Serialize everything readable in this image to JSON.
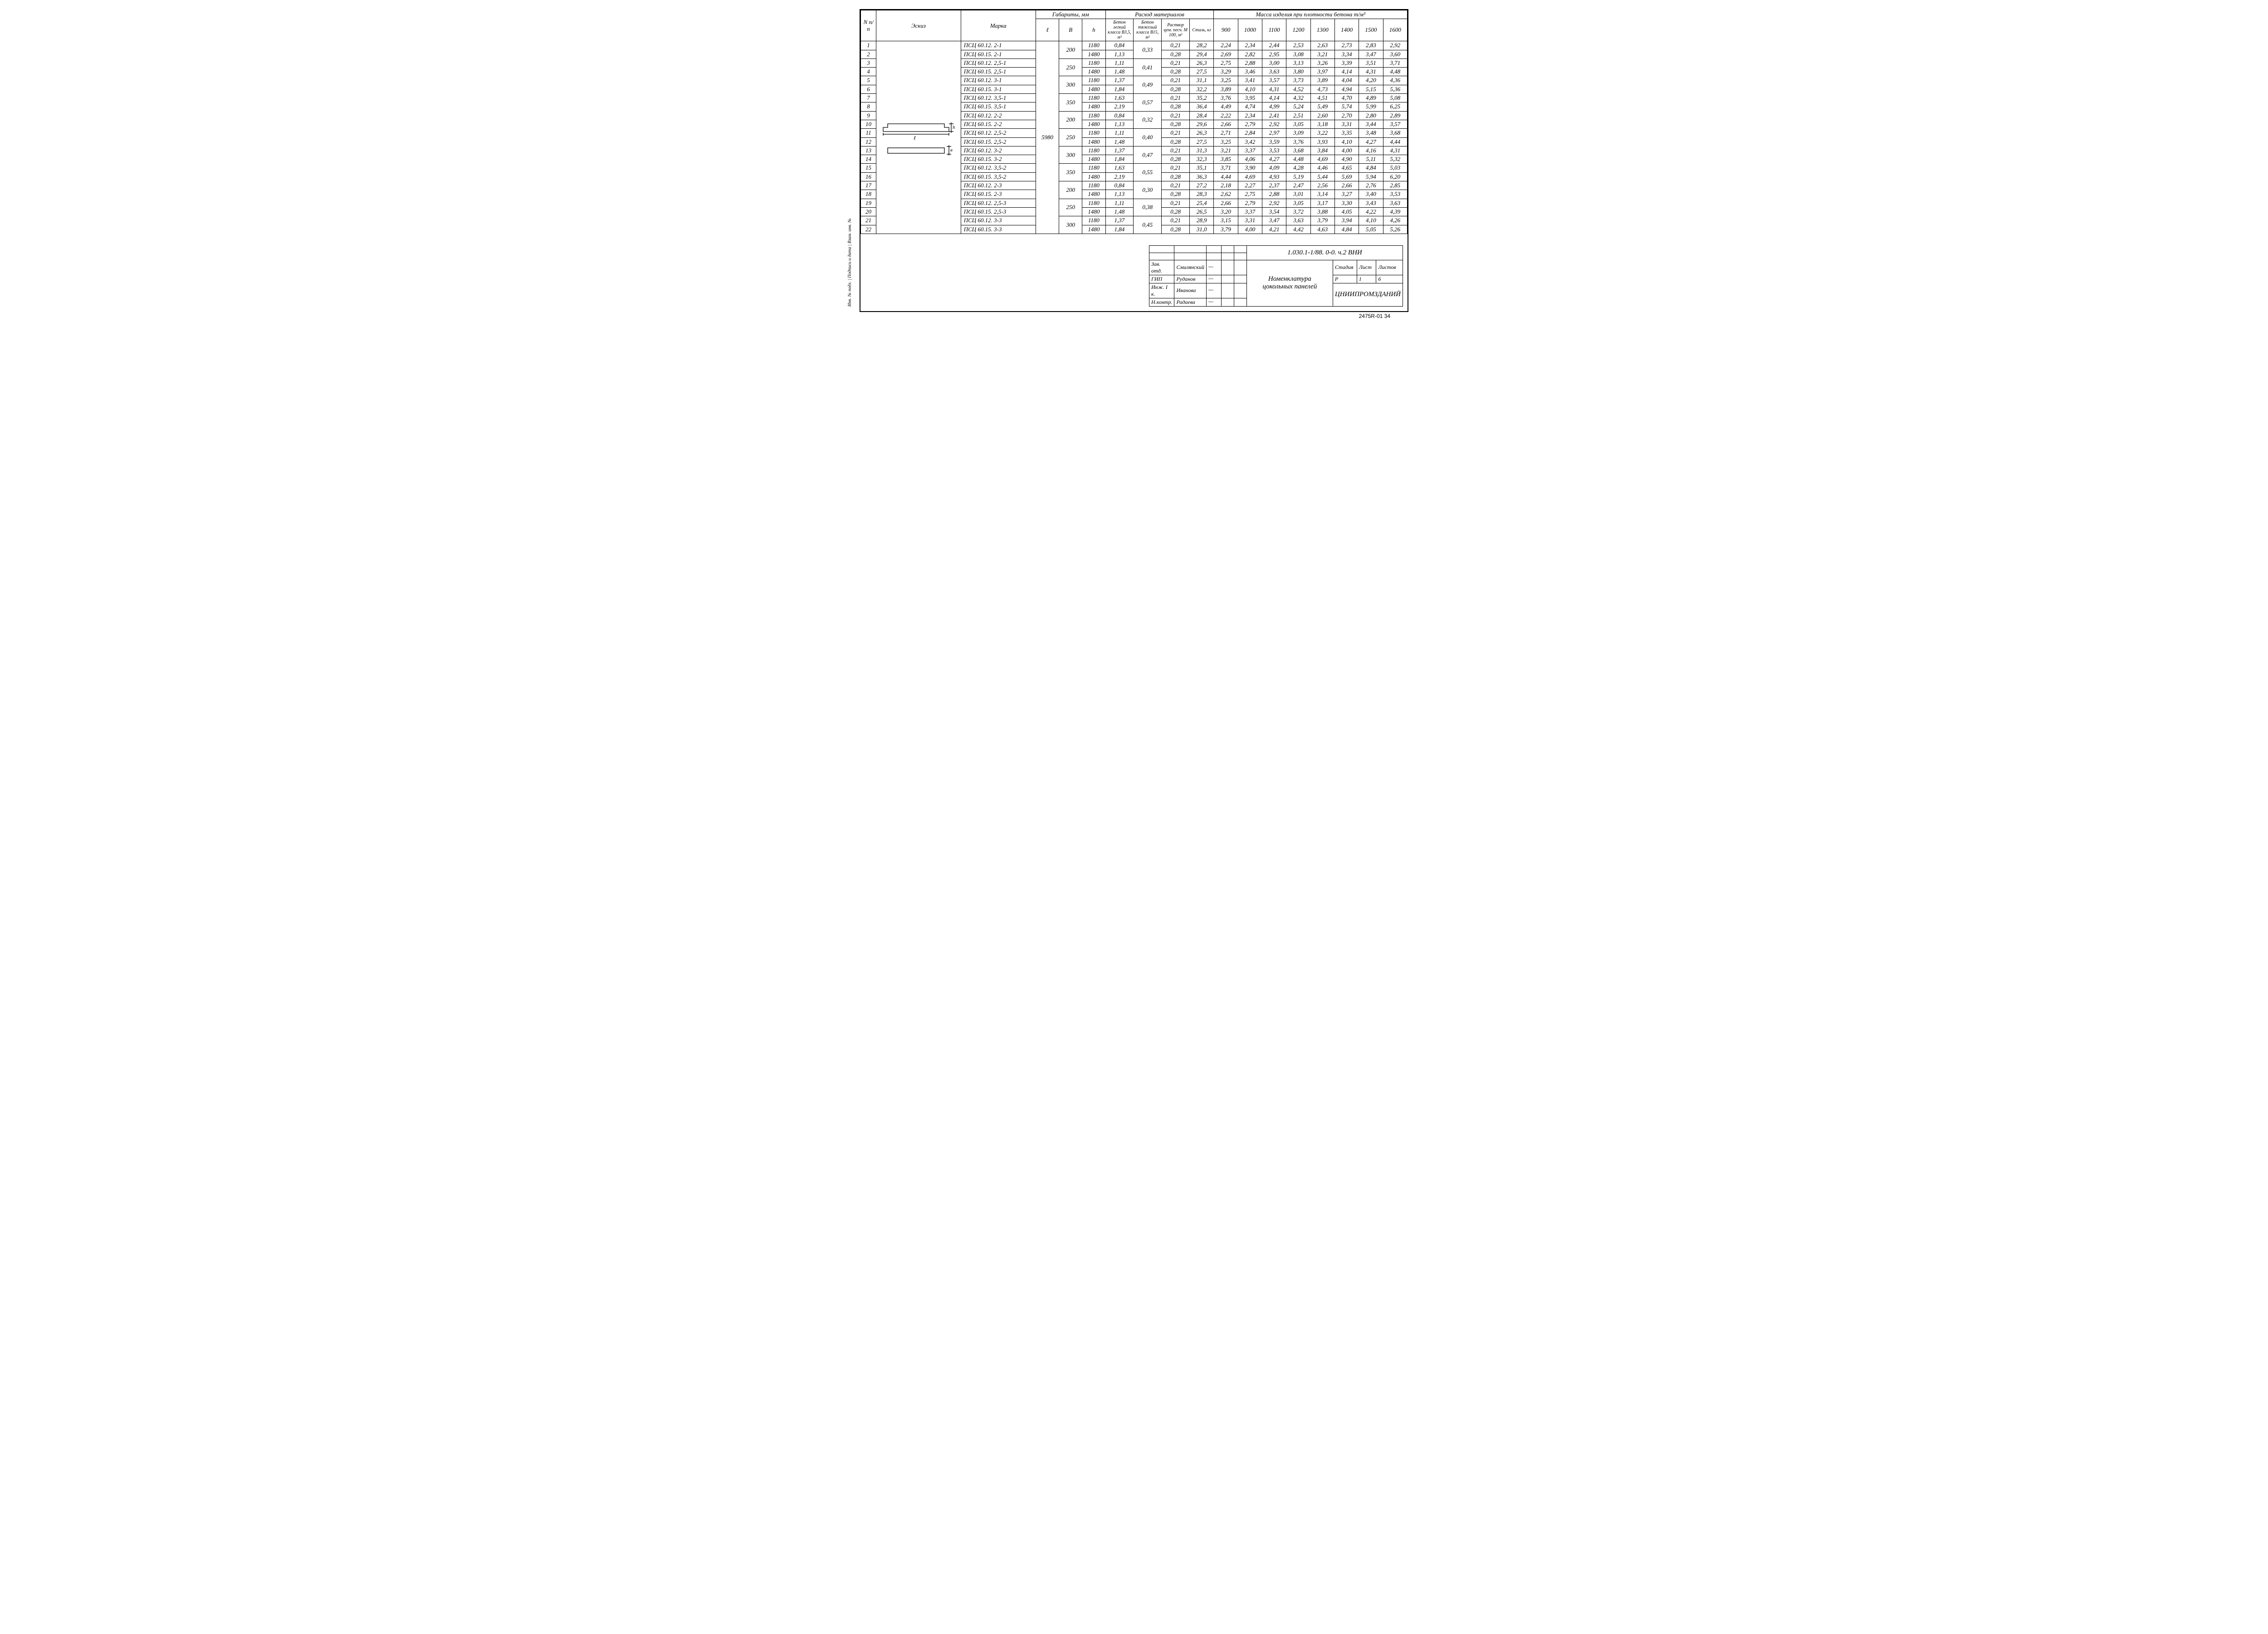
{
  "columns": {
    "n": "N п/п",
    "sketch": "Эскиз",
    "mark": "Марка",
    "dims_group": "Габариты, мм",
    "l": "ℓ",
    "b": "B",
    "h": "h",
    "consumption_group": "Расход материалов",
    "concrete_light": "Бетон легкий класса В3,5, м³",
    "concrete_heavy": "Бетон тяжелый класса В15, м³",
    "mortar": "Раствор цем. песч. М 100, м³",
    "steel": "Сталь, кг",
    "mass_group": "Масса изделия при плотности бетона т/м³",
    "dens": [
      "900",
      "1000",
      "1100",
      "1200",
      "1300",
      "1400",
      "1500",
      "1600"
    ]
  },
  "l_value": "5980",
  "groups": [
    {
      "b": "200",
      "heavy": "0,33",
      "rows": [
        {
          "n": "1",
          "mark": "ПСЦ 60.12. 2-1",
          "h": "1180",
          "light": "0,84",
          "mortar": "0,21",
          "steel": "28,2",
          "m": [
            "2,24",
            "2,34",
            "2,44",
            "2,53",
            "2,63",
            "2,73",
            "2,83",
            "2,92"
          ]
        },
        {
          "n": "2",
          "mark": "ПСЦ 60.15. 2-1",
          "h": "1480",
          "light": "1,13",
          "mortar": "0,28",
          "steel": "29,4",
          "m": [
            "2,69",
            "2,82",
            "2,95",
            "3,08",
            "3,21",
            "3,34",
            "3,47",
            "3,60"
          ]
        }
      ]
    },
    {
      "b": "250",
      "heavy": "0,41",
      "rows": [
        {
          "n": "3",
          "mark": "ПСЦ 60.12. 2,5-1",
          "h": "1180",
          "light": "1,11",
          "mortar": "0,21",
          "steel": "26,3",
          "m": [
            "2,75",
            "2,88",
            "3,00",
            "3,13",
            "3,26",
            "3,39",
            "3,51",
            "3,71"
          ]
        },
        {
          "n": "4",
          "mark": "ПСЦ 60.15. 2,5-1",
          "h": "1480",
          "light": "1,48",
          "mortar": "0,28",
          "steel": "27,5",
          "m": [
            "3,29",
            "3,46",
            "3,63",
            "3,80",
            "3,97",
            "4,14",
            "4,31",
            "4,48"
          ]
        }
      ]
    },
    {
      "b": "300",
      "heavy": "0,49",
      "rows": [
        {
          "n": "5",
          "mark": "ПСЦ 60.12. 3-1",
          "h": "1180",
          "light": "1,37",
          "mortar": "0,21",
          "steel": "31,1",
          "m": [
            "3,25",
            "3,41",
            "3,57",
            "3,73",
            "3,89",
            "4,04",
            "4,20",
            "4,36"
          ]
        },
        {
          "n": "6",
          "mark": "ПСЦ 60.15. 3-1",
          "h": "1480",
          "light": "1,84",
          "mortar": "0,28",
          "steel": "32,2",
          "m": [
            "3,89",
            "4,10",
            "4,31",
            "4,52",
            "4,73",
            "4,94",
            "5,15",
            "5,36"
          ]
        }
      ]
    },
    {
      "b": "350",
      "heavy": "0,57",
      "rows": [
        {
          "n": "7",
          "mark": "ПСЦ 60.12. 3,5-1",
          "h": "1180",
          "light": "1,63",
          "mortar": "0,21",
          "steel": "35,2",
          "m": [
            "3,76",
            "3,95",
            "4,14",
            "4,32",
            "4,51",
            "4,70",
            "4,89",
            "5,08"
          ]
        },
        {
          "n": "8",
          "mark": "ПСЦ 60.15. 3,5-1",
          "h": "1480",
          "light": "2,19",
          "mortar": "0,28",
          "steel": "36,4",
          "m": [
            "4,49",
            "4,74",
            "4,99",
            "5,24",
            "5,49",
            "5,74",
            "5,99",
            "6,25"
          ]
        }
      ]
    },
    {
      "b": "200",
      "heavy": "0,32",
      "rows": [
        {
          "n": "9",
          "mark": "ПСЦ 60.12. 2-2",
          "h": "1180",
          "light": "0,84",
          "mortar": "0,21",
          "steel": "28,4",
          "m": [
            "2,22",
            "2,34",
            "2,41",
            "2,51",
            "2,60",
            "2,70",
            "2,80",
            "2,89"
          ]
        },
        {
          "n": "10",
          "mark": "ПСЦ 60.15. 2-2",
          "h": "1480",
          "light": "1,13",
          "mortar": "0,28",
          "steel": "29,6",
          "m": [
            "2,66",
            "2,79",
            "2,92",
            "3,05",
            "3,18",
            "3,31",
            "3,44",
            "3,57"
          ]
        }
      ]
    },
    {
      "b": "250",
      "heavy": "0,40",
      "rows": [
        {
          "n": "11",
          "mark": "ПСЦ 60.12. 2,5-2",
          "h": "1180",
          "light": "1,11",
          "mortar": "0,21",
          "steel": "26,3",
          "m": [
            "2,71",
            "2,84",
            "2,97",
            "3,09",
            "3,22",
            "3,35",
            "3,48",
            "3,68"
          ]
        },
        {
          "n": "12",
          "mark": "ПСЦ 60.15. 2,5-2",
          "h": "1480",
          "light": "1,48",
          "mortar": "0,28",
          "steel": "27,5",
          "m": [
            "3,25",
            "3,42",
            "3,59",
            "3,76",
            "3,93",
            "4,10",
            "4,27",
            "4,44"
          ]
        }
      ]
    },
    {
      "b": "300",
      "heavy": "0,47",
      "rows": [
        {
          "n": "13",
          "mark": "ПСЦ 60.12. 3-2",
          "h": "1180",
          "light": "1,37",
          "mortar": "0,21",
          "steel": "31,3",
          "m": [
            "3,21",
            "3,37",
            "3,53",
            "3,68",
            "3,84",
            "4,00",
            "4,16",
            "4,31"
          ]
        },
        {
          "n": "14",
          "mark": "ПСЦ 60.15. 3-2",
          "h": "1480",
          "light": "1,84",
          "mortar": "0,28",
          "steel": "32,3",
          "m": [
            "3,85",
            "4,06",
            "4,27",
            "4,48",
            "4,69",
            "4,90",
            "5,11",
            "5,32"
          ]
        }
      ]
    },
    {
      "b": "350",
      "heavy": "0,55",
      "rows": [
        {
          "n": "15",
          "mark": "ПСЦ 60.12. 3,5-2",
          "h": "1180",
          "light": "1,63",
          "mortar": "0,21",
          "steel": "35,1",
          "m": [
            "3,71",
            "3,90",
            "4,09",
            "4,28",
            "4,46",
            "4,65",
            "4,84",
            "5,03"
          ]
        },
        {
          "n": "16",
          "mark": "ПСЦ 60.15. 3,5-2",
          "h": "1480",
          "light": "2,19",
          "mortar": "0,28",
          "steel": "36,3",
          "m": [
            "4,44",
            "4,69",
            "4,93",
            "5,19",
            "5,44",
            "5,69",
            "5,94",
            "6,20"
          ]
        }
      ]
    },
    {
      "b": "200",
      "heavy": "0,30",
      "rows": [
        {
          "n": "17",
          "mark": "ПСЦ 60.12. 2-3",
          "h": "1180",
          "light": "0,84",
          "mortar": "0,21",
          "steel": "27,2",
          "m": [
            "2,18",
            "2,27",
            "2,37",
            "2,47",
            "2,56",
            "2,66",
            "2,76",
            "2,85"
          ]
        },
        {
          "n": "18",
          "mark": "ПСЦ 60.15. 2-3",
          "h": "1480",
          "light": "1,13",
          "mortar": "0,28",
          "steel": "28,3",
          "m": [
            "2,62",
            "2,75",
            "2,88",
            "3,01",
            "3,14",
            "3,27",
            "3,40",
            "3,53"
          ]
        }
      ]
    },
    {
      "b": "250",
      "heavy": "0,38",
      "rows": [
        {
          "n": "19",
          "mark": "ПСЦ 60.12. 2,5-3",
          "h": "1180",
          "light": "1,11",
          "mortar": "0,21",
          "steel": "25,4",
          "m": [
            "2,66",
            "2,79",
            "2,92",
            "3,05",
            "3,17",
            "3,30",
            "3,43",
            "3,63"
          ]
        },
        {
          "n": "20",
          "mark": "ПСЦ 60.15. 2,5-3",
          "h": "1480",
          "light": "1,48",
          "mortar": "0,28",
          "steel": "26,5",
          "m": [
            "3,20",
            "3,37",
            "3,54",
            "3,72",
            "3,88",
            "4,05",
            "4,22",
            "4,39"
          ]
        }
      ]
    },
    {
      "b": "300",
      "heavy": "0,45",
      "rows": [
        {
          "n": "21",
          "mark": "ПСЦ 60.12. 3-3",
          "h": "1180",
          "light": "1,37",
          "mortar": "0,21",
          "steel": "28,9",
          "m": [
            "3,15",
            "3,31",
            "3,47",
            "3,63",
            "3,79",
            "3,94",
            "4,10",
            "4,26"
          ]
        },
        {
          "n": "22",
          "mark": "ПСЦ 60.15. 3-3",
          "h": "1480",
          "light": "1,84",
          "mortar": "0,28",
          "steel": "31,0",
          "m": [
            "3,79",
            "4,00",
            "4,21",
            "4,42",
            "4,63",
            "4,84",
            "5,05",
            "5,26"
          ]
        }
      ]
    }
  ],
  "title_block": {
    "code": "1.030.1-1/88. 0-0. ч.2 ВНИ",
    "title1": "Номенклатура",
    "title2": "цокольных панелей",
    "roles": [
      {
        "role": "Зав. отд.",
        "name": "Смилянский"
      },
      {
        "role": "ГИП",
        "name": "Руданов"
      },
      {
        "role": "Инж. I к.",
        "name": "Иванова"
      },
      {
        "role": "Н.контр.",
        "name": "Радаева"
      }
    ],
    "stage_h": "Стадия",
    "sheet_h": "Лист",
    "sheets_h": "Листов",
    "stage": "Р",
    "sheet": "1",
    "sheets": "6",
    "org": "ЦНИИПРОМЗДАНИЙ"
  },
  "footer": "2475R-01   34",
  "side_note": "Инв. № подл. | Подпись и дата | Взам. инв. №"
}
